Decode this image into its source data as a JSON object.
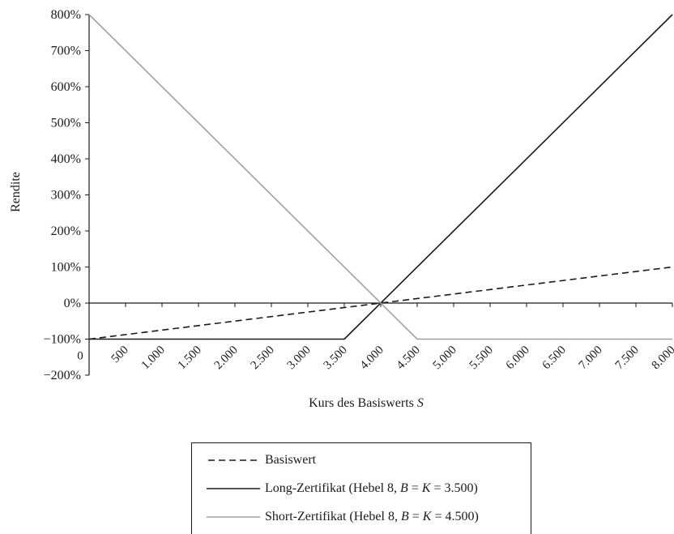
{
  "chart_data": {
    "type": "line",
    "title": "",
    "xlabel": "Kurs des Basiswerts",
    "xlabel_var": "S",
    "ylabel": "Rendite",
    "xlim": [
      0,
      8000
    ],
    "ylim": [
      -200,
      800
    ],
    "x_tick_labels": [
      "0",
      "500",
      "1.000",
      "1.500",
      "2.000",
      "2.500",
      "3.000",
      "3.500",
      "4.000",
      "4.500",
      "5.000",
      "5.500",
      "6.000",
      "6.500",
      "7.000",
      "7.500",
      "8.000"
    ],
    "y_tick_labels": [
      "800%",
      "700%",
      "600%",
      "500%",
      "400%",
      "300%",
      "200%",
      "100%",
      "0%",
      "−100%",
      "−200%"
    ],
    "grid": false,
    "legend_position": "bottom",
    "series": [
      {
        "name": "Basiswert",
        "style": "dashed",
        "color": "#1a1a1a",
        "x": [
          0,
          8000
        ],
        "y": [
          -100,
          100
        ]
      },
      {
        "name": "Long-Zertifikat (Hebel 8, B = K = 3.500)",
        "legend_prefix": "Long-Zertifikat (Hebel 8, ",
        "legend_b": "B",
        "legend_mid": " = ",
        "legend_k": "K",
        "legend_suffix": " = 3.500)",
        "style": "solid",
        "color": "#1a1a1a",
        "x": [
          0,
          3500,
          8000
        ],
        "y": [
          -100,
          -100,
          800
        ]
      },
      {
        "name": "Short-Zertifikat (Hebel 8, B = K = 4.500)",
        "legend_prefix": "Short-Zertifikat (Hebel 8, ",
        "legend_b": "B",
        "legend_mid": " = ",
        "legend_k": "K",
        "legend_suffix": " = 4.500)",
        "style": "solid",
        "color": "#a0a0a0",
        "x": [
          0,
          4500,
          8000
        ],
        "y": [
          800,
          -100,
          -100
        ]
      }
    ]
  }
}
